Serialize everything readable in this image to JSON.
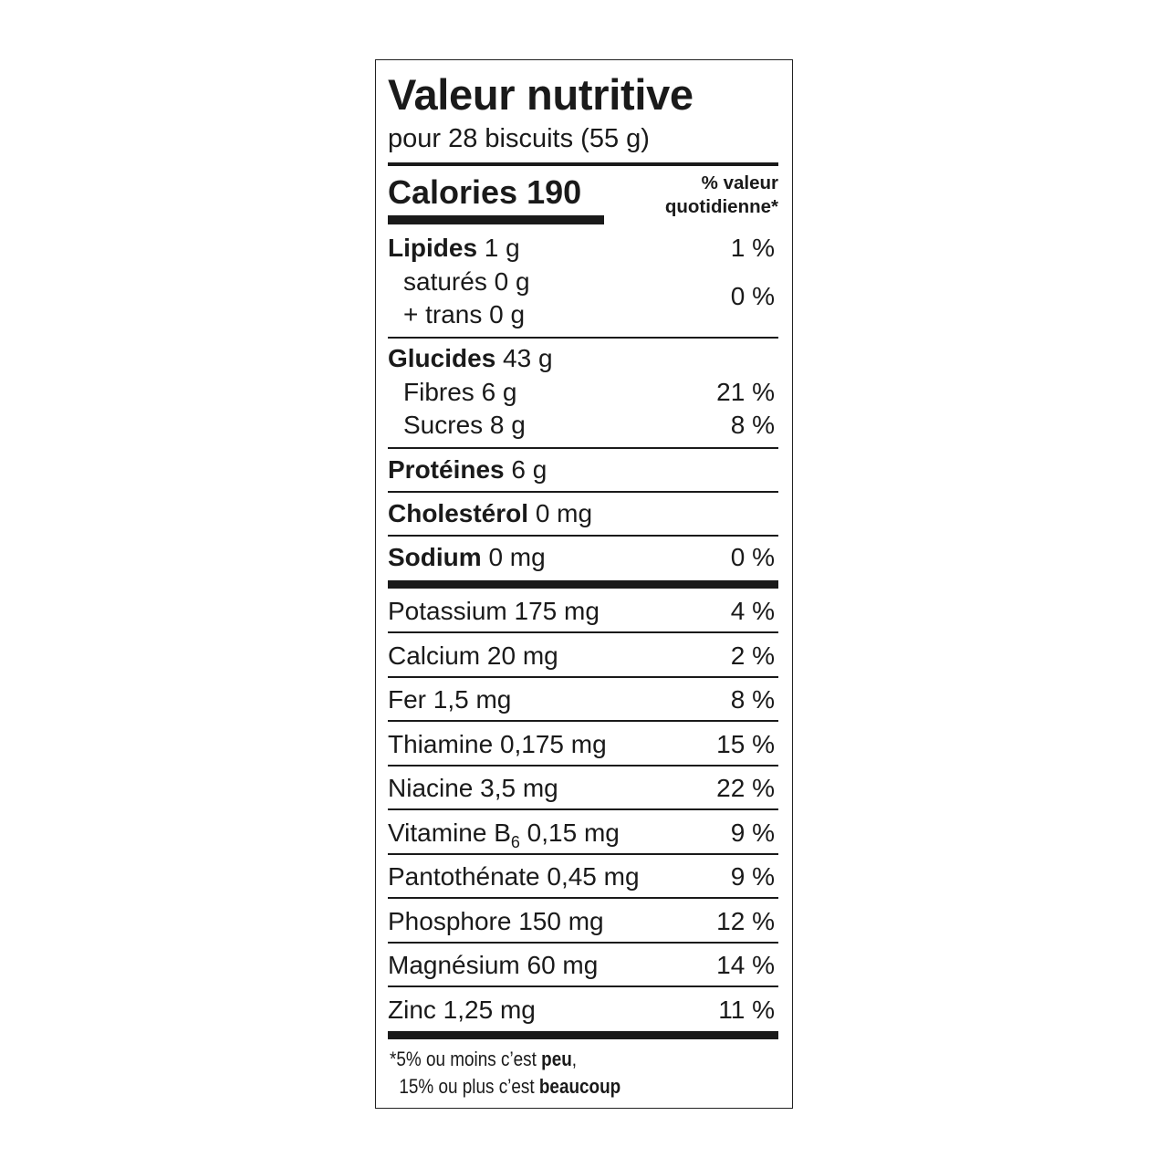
{
  "title": "Valeur nutritive",
  "serving": "pour 28 biscuits (55 g)",
  "calories": {
    "label": "Calories",
    "value": "190"
  },
  "dv_header": {
    "line1": "% valeur",
    "line2": "quotidienne*"
  },
  "fat": {
    "label": "Lipides",
    "amount": "1 g",
    "dv": "1 %",
    "saturated": "saturés 0 g",
    "trans": "+ trans 0 g",
    "sat_trans_dv": "0 %"
  },
  "carbs": {
    "label": "Glucides",
    "amount": "43 g",
    "fibre": "Fibres 6 g",
    "fibre_dv": "21 %",
    "sugars": "Sucres 8 g",
    "sugars_dv": "8 %"
  },
  "protein": {
    "label": "Protéines",
    "amount": "6 g"
  },
  "cholesterol": {
    "label": "Cholestérol",
    "amount": "0 mg"
  },
  "sodium": {
    "label": "Sodium",
    "amount": "0 mg",
    "dv": "0 %"
  },
  "minerals": [
    {
      "name": "Potassium 175 mg",
      "dv": "4 %"
    },
    {
      "name": "Calcium 20 mg",
      "dv": "2 %"
    },
    {
      "name": "Fer 1,5 mg",
      "dv": "8 %"
    },
    {
      "name": "Thiamine 0,175 mg",
      "dv": "15 %"
    },
    {
      "name": "Niacine 3,5 mg",
      "dv": "22 %"
    },
    {
      "name": "Vitamine B",
      "sub": "6",
      "amount": " 0,15 mg",
      "dv": "9 %"
    },
    {
      "name": "Pantothénate 0,45 mg",
      "dv": "9 %"
    },
    {
      "name": "Phosphore 150 mg",
      "dv": "12 %"
    },
    {
      "name": "Magnésium 60 mg",
      "dv": "14 %"
    },
    {
      "name": "Zinc 1,25 mg",
      "dv": "11 %"
    }
  ],
  "footnote": {
    "line1_prefix": "*5% ou moins c’est ",
    "line1_bold": "peu",
    "line1_suffix": ",",
    "line2_prefix": " 15% ou plus c’est ",
    "line2_bold": "beaucoup"
  }
}
